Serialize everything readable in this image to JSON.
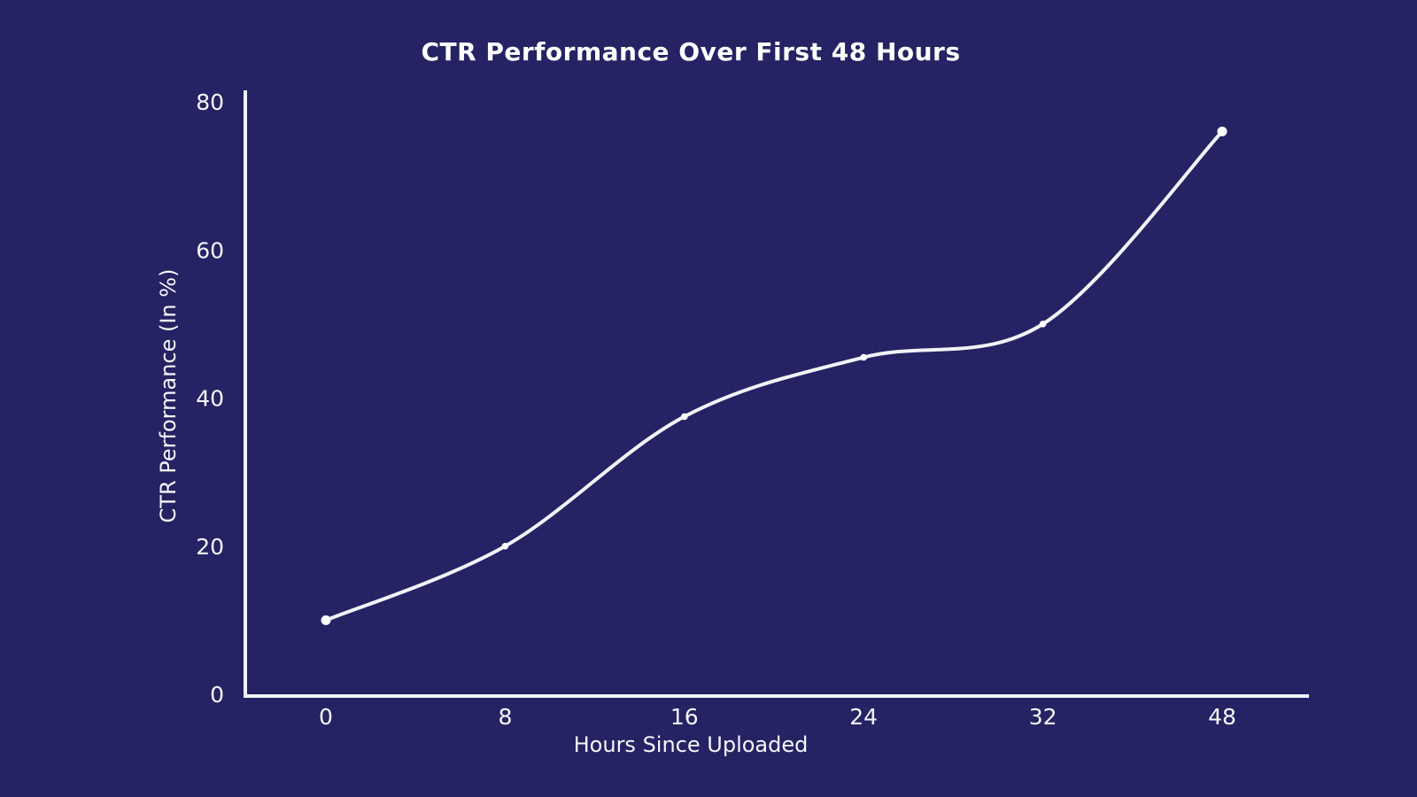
{
  "page": {
    "background_color": "#252363"
  },
  "chart_data": {
    "type": "line",
    "title": "CTR Performance Over First 48 Hours",
    "xlabel": "Hours Since Uploaded",
    "ylabel": "CTR Performance (In %)",
    "categories": [
      "0",
      "8",
      "16",
      "24",
      "32",
      "48"
    ],
    "series": [
      {
        "name": "CTR Performance",
        "values": [
          10,
          20,
          37.5,
          45.5,
          50,
          76
        ]
      }
    ],
    "yticks": [
      0,
      20,
      40,
      60,
      80
    ],
    "ylim": [
      0,
      80
    ],
    "grid": false,
    "legend_position": "none",
    "colors": {
      "background": "#252363",
      "line": "#f2f3f8",
      "marker": "#ffffff",
      "axis": "#f2f3f8",
      "text": "#f5f6fb",
      "title_text": "#ffffff"
    }
  }
}
